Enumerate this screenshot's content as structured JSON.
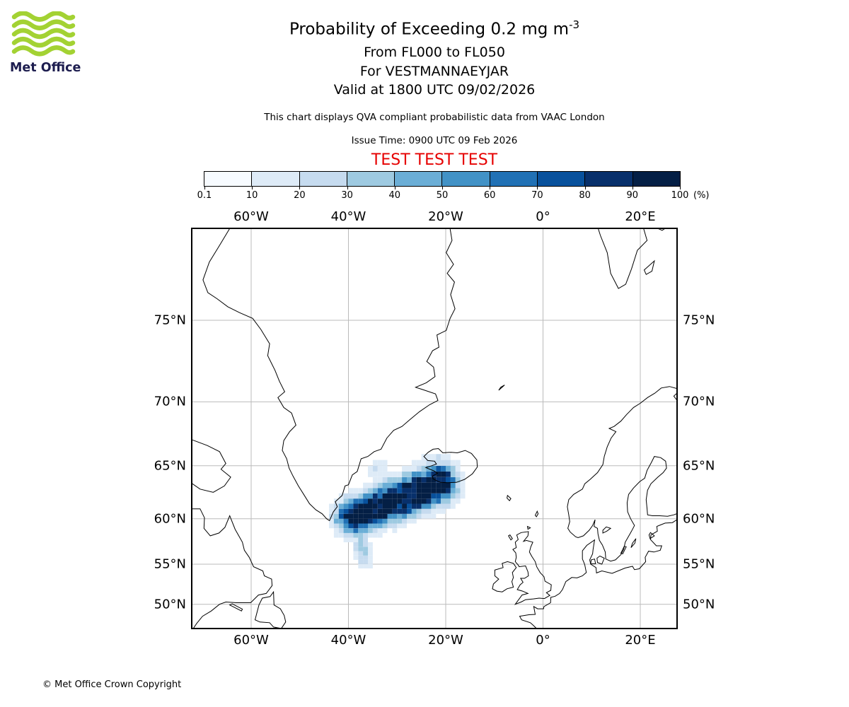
{
  "logo": {
    "brand": "Met Office",
    "green": "#a3d233",
    "navy": "#1d1d4f"
  },
  "header": {
    "title_prefix": "Probability of Exceeding 0.2 mg m",
    "title_sup": "-3",
    "line2": "From FL000 to FL050",
    "line3": "For VESTMANNAEYJAR",
    "line4": "Valid at 1800 UTC 09/02/2026",
    "note": "This chart displays QVA compliant probabilistic data from VAAC London",
    "issue": "Issue Time: 0900 UTC 09 Feb 2026",
    "test_banner": "TEST TEST TEST",
    "test_color": "#e60000"
  },
  "colorbar": {
    "tick_labels": [
      "0.1",
      "10",
      "20",
      "30",
      "40",
      "50",
      "60",
      "70",
      "80",
      "90",
      "100"
    ],
    "unit": "(%)",
    "colors": [
      "#f7fbff",
      "#deebf7",
      "#c6dbef",
      "#9ecae1",
      "#6baed6",
      "#4292c6",
      "#2171b5",
      "#08519c",
      "#08306b",
      "#041f45"
    ]
  },
  "map": {
    "grid_color": "#bbbbbb",
    "coast_color": "#000000",
    "lon_ticks": [
      {
        "label": "60°W",
        "lon": -60
      },
      {
        "label": "40°W",
        "lon": -40
      },
      {
        "label": "20°W",
        "lon": -20
      },
      {
        "label": "0°",
        "lon": 0
      },
      {
        "label": "20°E",
        "lon": 20
      }
    ],
    "lat_ticks": [
      {
        "label": "75°N",
        "lat": 75
      },
      {
        "label": "70°N",
        "lat": 70
      },
      {
        "label": "65°N",
        "lat": 65
      },
      {
        "label": "60°N",
        "lat": 60
      },
      {
        "label": "55°N",
        "lat": 55
      },
      {
        "label": "50°N",
        "lat": 50
      }
    ]
  },
  "footer": {
    "copyright": "© Met Office Crown Copyright"
  },
  "chart_data": {
    "type": "heatmap",
    "title": "Probability of Exceeding 0.2 mg m-3",
    "subtitle": [
      "From FL000 to FL050",
      "For VESTMANNAEYJAR",
      "Valid at 1800 UTC 09/02/2026"
    ],
    "source_note": "This chart displays QVA compliant probabilistic data from VAAC London",
    "issue_time": "0900 UTC 09 Feb 2026",
    "units": "%",
    "levels": [
      0.1,
      10,
      20,
      30,
      40,
      50,
      60,
      70,
      80,
      90,
      100
    ],
    "palette": [
      "#f7fbff",
      "#deebf7",
      "#c6dbef",
      "#9ecae1",
      "#6baed6",
      "#4292c6",
      "#2171b5",
      "#08519c",
      "#08306b",
      "#041f45"
    ],
    "projection": "mercator",
    "map_extent": {
      "lon_min": -72.4,
      "lon_max": 27.7,
      "lat_min": 46.6,
      "lat_max": 79.2
    },
    "grid": {
      "lon_lines": [
        -60,
        -40,
        -20,
        0,
        20
      ],
      "lat_lines": [
        50,
        55,
        60,
        65,
        70,
        75
      ]
    },
    "plume": {
      "description": "Volcanic ash exceedance-probability plume over the North Atlantic between SE Greenland and SW Iceland, elongated SW-NE, dark core >90% near 62N 30W, light tail extending south to ~55N 37W",
      "core_axis": [
        [
          -38.5,
          60.2
        ],
        [
          -21.5,
          63.4
        ]
      ],
      "core_sigma_deg": 1.7,
      "core_peak": 115,
      "tail_axis": [
        [
          -38.0,
          60.0
        ],
        [
          -36.8,
          55.4
        ]
      ],
      "tail_sigma_deg": 0.8,
      "tail_peak": 34,
      "patch_center": [
        -34.0,
        64.5
      ],
      "patch_sigma_deg": 1.1,
      "patch_peak": 24,
      "cell_deg": [
        1.0,
        0.5
      ],
      "max_probability_pct": 100
    }
  }
}
